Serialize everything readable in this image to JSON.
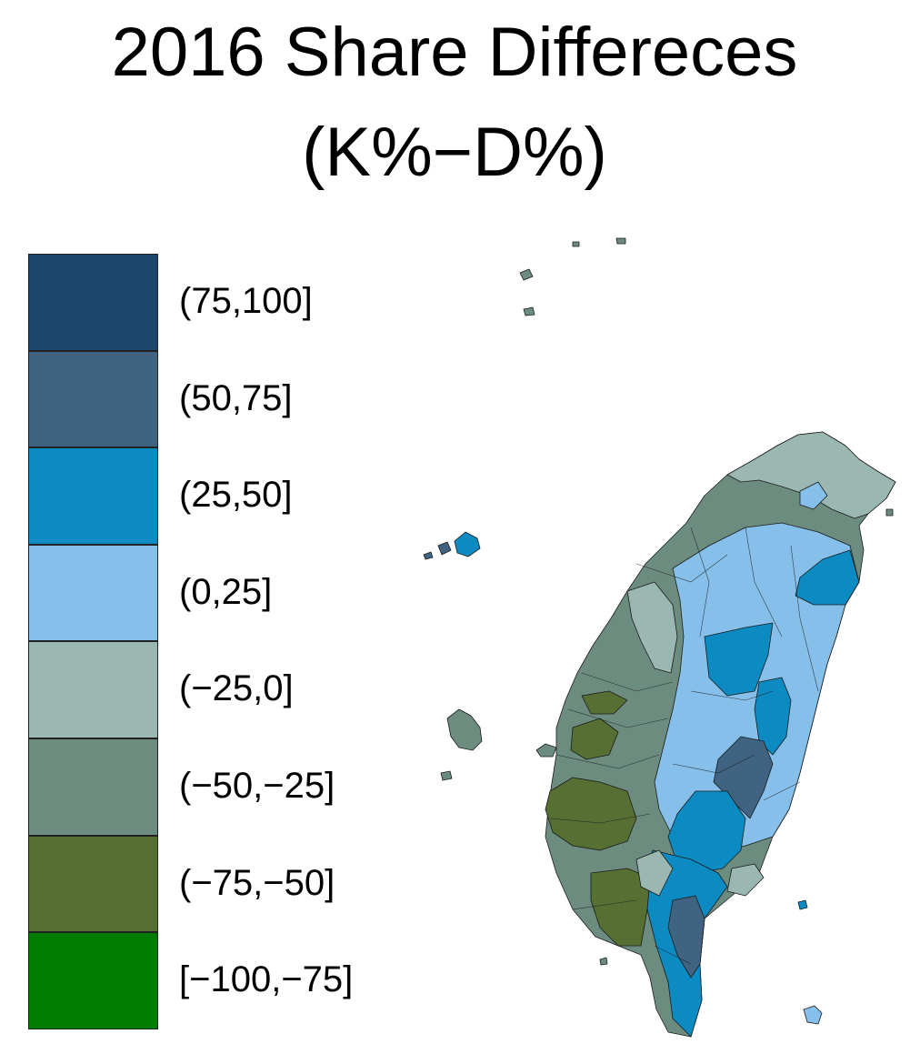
{
  "title": {
    "line1": "2016 Share Differeces",
    "line2": "(K%−D%)"
  },
  "legend": {
    "items": [
      {
        "label": "(75,100]",
        "color": "#1b466e"
      },
      {
        "label": "(50,75]",
        "color": "#3f6381"
      },
      {
        "label": "(25,50]",
        "color": "#0b8bc1"
      },
      {
        "label": "(0,25]",
        "color": "#86c0ea"
      },
      {
        "label": "(−25,0]",
        "color": "#9ab8b1"
      },
      {
        "label": "(−50,−25]",
        "color": "#6d8c80"
      },
      {
        "label": "(−75,−50]",
        "color": "#567033"
      },
      {
        "label": "[−100,−75]",
        "color": "#007d00"
      }
    ]
  },
  "colors": {
    "border": "#1a1a1a",
    "background": "#ffffff"
  }
}
